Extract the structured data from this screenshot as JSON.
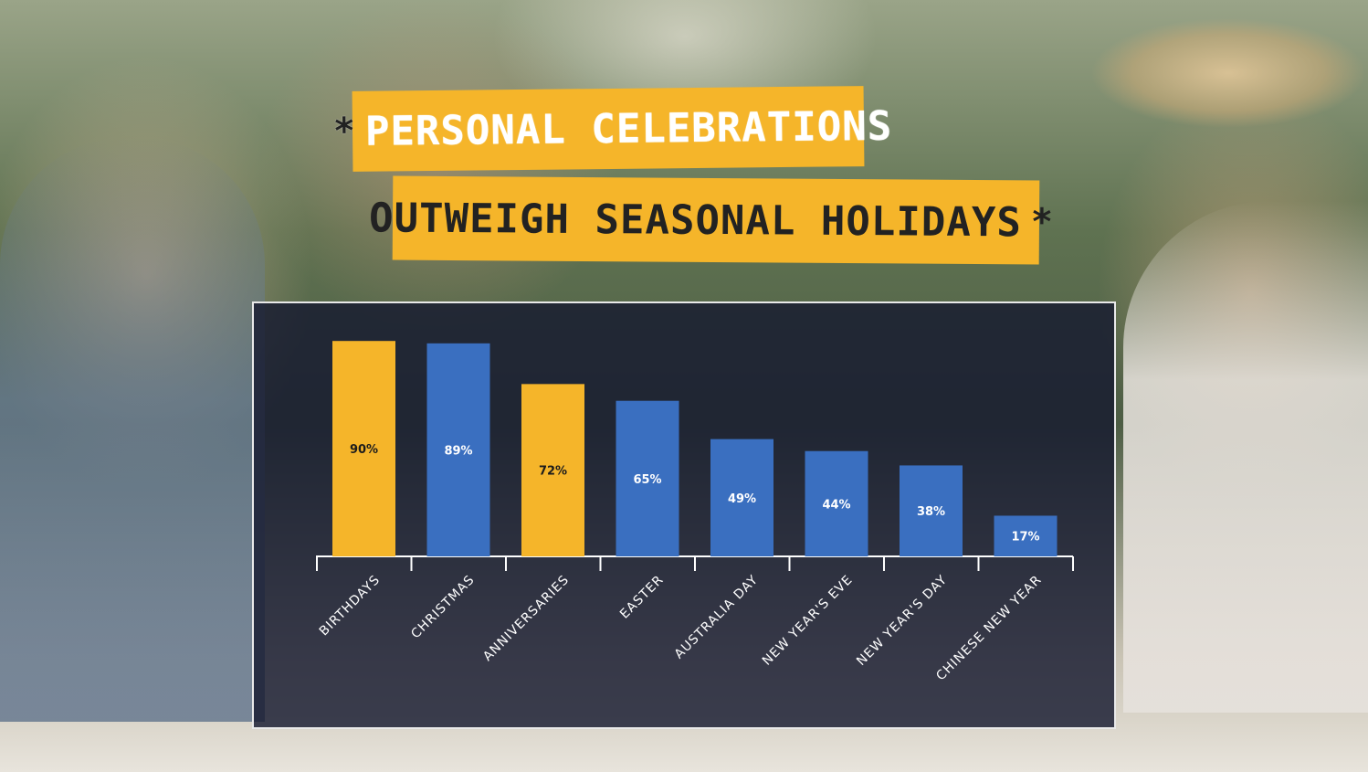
{
  "title": {
    "line1": "PERSONAL CELEBRATIONS",
    "line2": "OUTWEIGH SEASONAL HOLIDAYS",
    "star": "*"
  },
  "colors": {
    "highlight": "#f5b52a",
    "standard": "#3a6fc0",
    "panel": "#161a30"
  },
  "chart_data": {
    "type": "bar",
    "title": "PERSONAL CELEBRATIONS OUTWEIGH SEASONAL HOLIDAYS",
    "categories": [
      "BIRTHDAYS",
      "CHRISTMAS",
      "ANNIVERSARIES",
      "EASTER",
      "AUSTRALIA DAY",
      "NEW YEAR'S EVE",
      "NEW YEAR'S DAY",
      "CHINESE NEW YEAR"
    ],
    "values": [
      90,
      89,
      72,
      65,
      49,
      44,
      38,
      17
    ],
    "value_labels": [
      "90%",
      "89%",
      "72%",
      "65%",
      "49%",
      "44%",
      "38%",
      "17%"
    ],
    "highlight": [
      true,
      false,
      true,
      false,
      false,
      false,
      false,
      false
    ],
    "ylim": [
      0,
      100
    ],
    "grid": false,
    "legend": "none"
  }
}
